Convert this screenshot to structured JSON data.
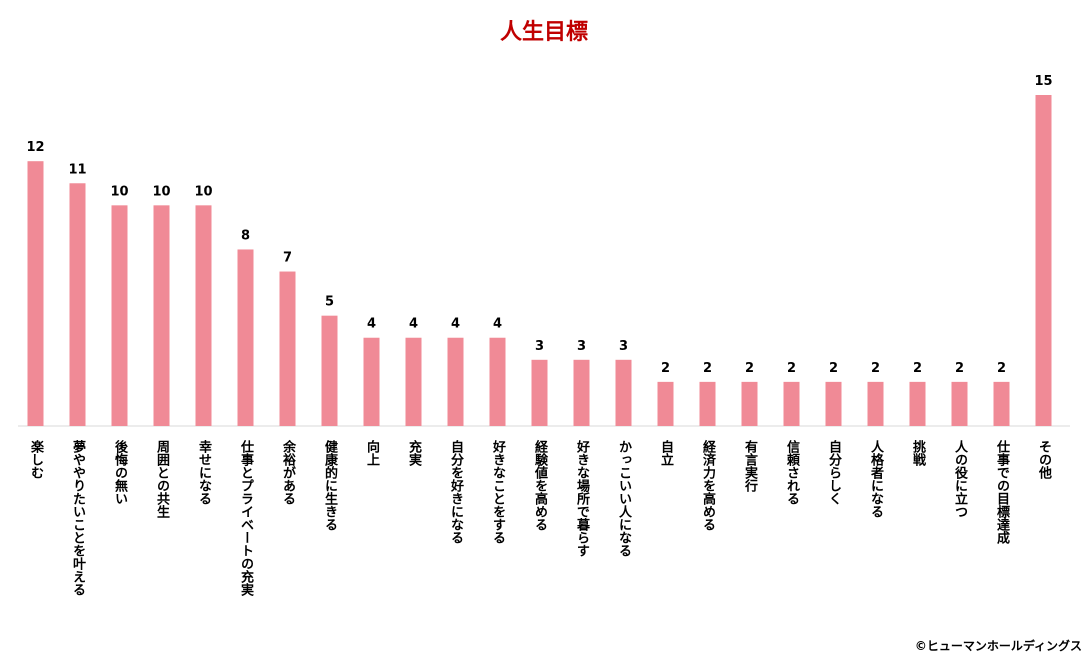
{
  "chart_data": {
    "type": "bar",
    "title": "人生目標",
    "categories": [
      "楽しむ",
      "夢ややりたいことを叶える",
      "後悔の無い",
      "周囲との共生",
      "幸せになる",
      "仕事とプライベートの充実",
      "余裕がある",
      "健康的に生きる",
      "向上",
      "充実",
      "自分を好きになる",
      "好きなことをする",
      "経験値を高める",
      "好きな場所で暮らす",
      "かっこいい人になる",
      "自立",
      "経済力を高める",
      "有言実行",
      "信頼される",
      "自分らしく",
      "人格者になる",
      "挑戦",
      "人の役に立つ",
      "仕事での目標達成",
      "その他"
    ],
    "values": [
      12,
      11,
      10,
      10,
      10,
      8,
      7,
      5,
      4,
      4,
      4,
      4,
      3,
      3,
      3,
      2,
      2,
      2,
      2,
      2,
      2,
      2,
      2,
      2,
      15
    ],
    "ylim": [
      0,
      15
    ],
    "grid": false,
    "legend": "none",
    "colors": {
      "bar": "#f08a96",
      "title": "#c00000"
    }
  },
  "copyright": "©ヒューマンホールディングス"
}
